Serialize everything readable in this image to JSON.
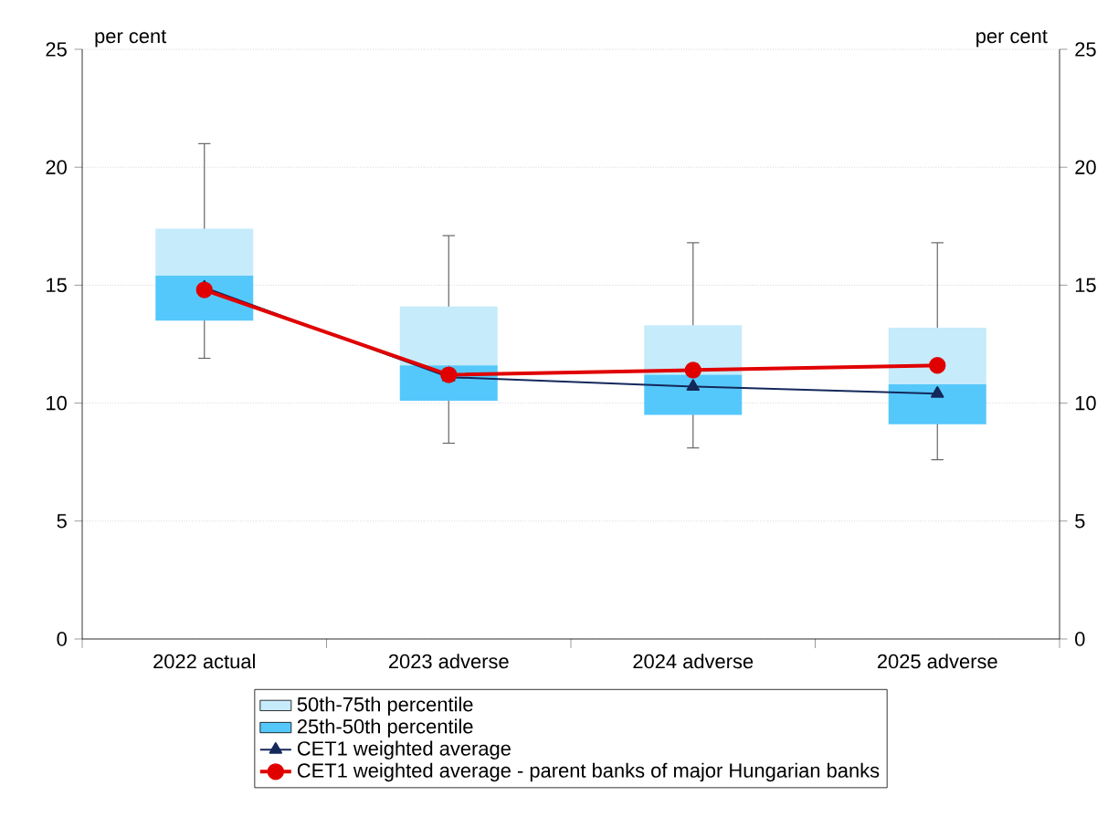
{
  "chart_data": {
    "type": "bar",
    "ylabel": "per cent",
    "y2label": "per cent",
    "categories": [
      "2022 actual",
      "2023 adverse",
      "2024 adverse",
      "2025 adverse"
    ],
    "ylim": [
      0,
      25
    ],
    "yticks": [
      0,
      5,
      10,
      15,
      20,
      25
    ],
    "y2lim": [
      0,
      25
    ],
    "y2ticks": [
      0,
      5,
      10,
      15,
      20,
      25
    ],
    "grid": "y",
    "legend": "bottom",
    "series": [
      {
        "name": "50th-75th percentile",
        "color": "#c6ebfb",
        "base": [
          15.4,
          11.6,
          11.2,
          10.8
        ],
        "values": [
          2.0,
          2.5,
          2.1,
          2.4
        ],
        "errors": [
          [
            11.9,
            21.0
          ],
          [
            8.3,
            17.1
          ],
          [
            8.1,
            16.8
          ],
          [
            7.6,
            16.8
          ]
        ]
      },
      {
        "name": "25th-50th percentile",
        "color": "#55c8fb",
        "base": [
          13.5,
          10.1,
          9.5,
          9.1
        ],
        "values": [
          1.9,
          1.5,
          1.7,
          1.7
        ]
      },
      {
        "name": "CET1 weighted average",
        "type": "line",
        "color": "#14285a",
        "marker": "triangle",
        "values": [
          14.9,
          11.1,
          10.7,
          10.4
        ]
      },
      {
        "name": "CET1 weighted average - parent banks of major Hungarian banks",
        "type": "line",
        "color": "#e00000",
        "marker": "circle",
        "values": [
          14.8,
          11.2,
          11.4,
          11.6
        ]
      }
    ]
  }
}
